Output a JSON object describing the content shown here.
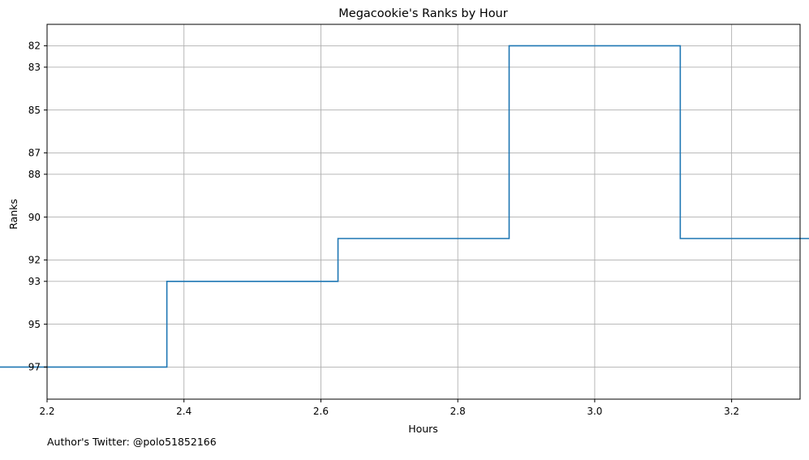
{
  "chart_data": {
    "type": "line",
    "step": "mid",
    "title": "Megacookie's Ranks by Hour",
    "xlabel": "Hours",
    "ylabel": "Ranks",
    "xlim": [
      2.2,
      3.3
    ],
    "ylim": [
      98.5,
      81
    ],
    "y_inverted": true,
    "grid": true,
    "x_ticks": [
      2.2,
      2.4,
      2.6,
      2.8,
      3.0,
      3.2
    ],
    "x_tick_labels": [
      "2.2",
      "2.4",
      "2.6",
      "2.8",
      "3.0",
      "3.2"
    ],
    "y_ticks": [
      82,
      83,
      85,
      87,
      88,
      90,
      92,
      93,
      95,
      97
    ],
    "y_tick_labels": [
      "82",
      "83",
      "85",
      "87",
      "88",
      "90",
      "92",
      "93",
      "95",
      "97"
    ],
    "series": [
      {
        "color": "#1f77b4",
        "x": [
          2.25,
          2.5,
          2.75,
          3.0,
          3.25
        ],
        "y": [
          97,
          93,
          91,
          82,
          91
        ]
      }
    ]
  },
  "footnote": "Author's Twitter: @polo51852166"
}
